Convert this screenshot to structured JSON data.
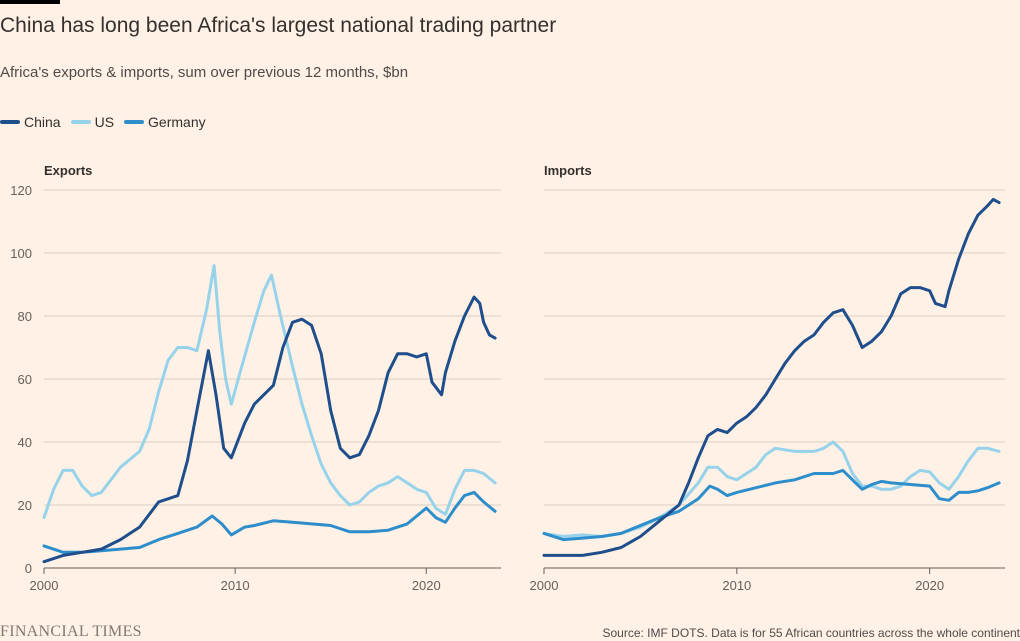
{
  "header": {
    "title": "China has long been Africa's largest national trading partner",
    "subtitle": "Africa's exports & imports, sum over previous 12 months, $bn"
  },
  "legend": [
    {
      "label": "China",
      "color": "#1f4e8c"
    },
    {
      "label": "US",
      "color": "#96d3eb"
    },
    {
      "label": "Germany",
      "color": "#2d8ecb"
    }
  ],
  "footer": {
    "brand": "FINANCIAL TIMES",
    "source": "Source: IMF DOTS. Data is for 55 African countries across the whole continent"
  },
  "chart_data": [
    {
      "type": "line",
      "title": "Exports",
      "xlim": [
        2000,
        2023.7
      ],
      "ylim": [
        0,
        120
      ],
      "xticks": [
        "2000",
        "2010",
        "2020"
      ],
      "yticks": [
        "0",
        "20",
        "40",
        "60",
        "80",
        "100",
        "120"
      ],
      "series": [
        {
          "name": "China",
          "color": "#1f4e8c",
          "points": [
            [
              2000,
              2
            ],
            [
              2001,
              4
            ],
            [
              2002,
              5
            ],
            [
              2003,
              6
            ],
            [
              2004,
              9
            ],
            [
              2005,
              13
            ],
            [
              2006,
              21
            ],
            [
              2007,
              23
            ],
            [
              2007.5,
              34
            ],
            [
              2008,
              50
            ],
            [
              2008.6,
              69
            ],
            [
              2009,
              55
            ],
            [
              2009.4,
              38
            ],
            [
              2009.8,
              35
            ],
            [
              2010.5,
              46
            ],
            [
              2011,
              52
            ],
            [
              2012,
              58
            ],
            [
              2012.5,
              70
            ],
            [
              2013,
              78
            ],
            [
              2013.5,
              79
            ],
            [
              2014,
              77
            ],
            [
              2014.5,
              68
            ],
            [
              2015,
              50
            ],
            [
              2015.5,
              38
            ],
            [
              2016,
              35
            ],
            [
              2016.5,
              36
            ],
            [
              2017,
              42
            ],
            [
              2017.5,
              50
            ],
            [
              2018,
              62
            ],
            [
              2018.5,
              68
            ],
            [
              2019,
              68
            ],
            [
              2019.5,
              67
            ],
            [
              2020,
              68
            ],
            [
              2020.3,
              59
            ],
            [
              2020.8,
              55
            ],
            [
              2021,
              62
            ],
            [
              2021.5,
              72
            ],
            [
              2022,
              80
            ],
            [
              2022.5,
              86
            ],
            [
              2022.8,
              84
            ],
            [
              2023,
              78
            ],
            [
              2023.3,
              74
            ],
            [
              2023.6,
              73
            ]
          ]
        },
        {
          "name": "US",
          "color": "#96d3eb",
          "points": [
            [
              2000,
              16
            ],
            [
              2000.5,
              25
            ],
            [
              2001,
              31
            ],
            [
              2001.5,
              31
            ],
            [
              2002,
              26
            ],
            [
              2002.5,
              23
            ],
            [
              2003,
              24
            ],
            [
              2004,
              32
            ],
            [
              2005,
              37
            ],
            [
              2005.5,
              44
            ],
            [
              2006,
              56
            ],
            [
              2006.5,
              66
            ],
            [
              2007,
              70
            ],
            [
              2007.5,
              70
            ],
            [
              2008,
              69
            ],
            [
              2008.5,
              82
            ],
            [
              2008.9,
              96
            ],
            [
              2009.2,
              75
            ],
            [
              2009.5,
              60
            ],
            [
              2009.8,
              52
            ],
            [
              2010.3,
              63
            ],
            [
              2011,
              78
            ],
            [
              2011.5,
              88
            ],
            [
              2011.9,
              93
            ],
            [
              2012.3,
              82
            ],
            [
              2013,
              64
            ],
            [
              2013.5,
              52
            ],
            [
              2014,
              42
            ],
            [
              2014.5,
              33
            ],
            [
              2015,
              27
            ],
            [
              2015.5,
              23
            ],
            [
              2016,
              20
            ],
            [
              2016.5,
              21
            ],
            [
              2017,
              24
            ],
            [
              2017.5,
              26
            ],
            [
              2018,
              27
            ],
            [
              2018.5,
              29
            ],
            [
              2019,
              27
            ],
            [
              2019.5,
              25
            ],
            [
              2020,
              24
            ],
            [
              2020.5,
              19
            ],
            [
              2021,
              17
            ],
            [
              2021.5,
              25
            ],
            [
              2022,
              31
            ],
            [
              2022.5,
              31
            ],
            [
              2023,
              30
            ],
            [
              2023.6,
              27
            ]
          ]
        },
        {
          "name": "Germany",
          "color": "#2d8ecb",
          "points": [
            [
              2000,
              7
            ],
            [
              2001,
              5
            ],
            [
              2002,
              5
            ],
            [
              2003,
              5.5
            ],
            [
              2004,
              6
            ],
            [
              2005,
              6.5
            ],
            [
              2006,
              9
            ],
            [
              2007,
              11
            ],
            [
              2008,
              13
            ],
            [
              2008.8,
              16.5
            ],
            [
              2009.3,
              14
            ],
            [
              2009.8,
              10.5
            ],
            [
              2010.5,
              13
            ],
            [
              2011,
              13.5
            ],
            [
              2012,
              15
            ],
            [
              2013,
              14.5
            ],
            [
              2014,
              14
            ],
            [
              2015,
              13.5
            ],
            [
              2016,
              11.5
            ],
            [
              2017,
              11.5
            ],
            [
              2018,
              12
            ],
            [
              2019,
              14
            ],
            [
              2020,
              19
            ],
            [
              2020.5,
              16
            ],
            [
              2021,
              14.5
            ],
            [
              2021.5,
              19
            ],
            [
              2022,
              23
            ],
            [
              2022.5,
              24
            ],
            [
              2023,
              21
            ],
            [
              2023.6,
              18
            ]
          ]
        }
      ]
    },
    {
      "type": "line",
      "title": "Imports",
      "xlim": [
        2000,
        2023.7
      ],
      "ylim": [
        0,
        120
      ],
      "xticks": [
        "2000",
        "2010",
        "2020"
      ],
      "yticks": [
        "0",
        "20",
        "40",
        "60",
        "80",
        "100",
        "120"
      ],
      "series": [
        {
          "name": "China",
          "color": "#1f4e8c",
          "points": [
            [
              2000,
              4
            ],
            [
              2001,
              4
            ],
            [
              2002,
              4
            ],
            [
              2003,
              5
            ],
            [
              2004,
              6.5
            ],
            [
              2005,
              10
            ],
            [
              2006,
              15
            ],
            [
              2007,
              20
            ],
            [
              2007.5,
              27
            ],
            [
              2008,
              35
            ],
            [
              2008.5,
              42
            ],
            [
              2009,
              44
            ],
            [
              2009.5,
              43
            ],
            [
              2010,
              46
            ],
            [
              2010.5,
              48
            ],
            [
              2011,
              51
            ],
            [
              2011.5,
              55
            ],
            [
              2012,
              60
            ],
            [
              2012.5,
              65
            ],
            [
              2013,
              69
            ],
            [
              2013.5,
              72
            ],
            [
              2014,
              74
            ],
            [
              2014.5,
              78
            ],
            [
              2015,
              81
            ],
            [
              2015.5,
              82
            ],
            [
              2016,
              77
            ],
            [
              2016.5,
              70
            ],
            [
              2017,
              72
            ],
            [
              2017.5,
              75
            ],
            [
              2018,
              80
            ],
            [
              2018.5,
              87
            ],
            [
              2019,
              89
            ],
            [
              2019.5,
              89
            ],
            [
              2020,
              88
            ],
            [
              2020.3,
              84
            ],
            [
              2020.8,
              83
            ],
            [
              2021,
              88
            ],
            [
              2021.5,
              98
            ],
            [
              2022,
              106
            ],
            [
              2022.5,
              112
            ],
            [
              2023,
              115
            ],
            [
              2023.3,
              117
            ],
            [
              2023.6,
              116
            ]
          ]
        },
        {
          "name": "US",
          "color": "#96d3eb",
          "points": [
            [
              2000,
              11
            ],
            [
              2001,
              10
            ],
            [
              2002,
              10.5
            ],
            [
              2003,
              10
            ],
            [
              2004,
              11
            ],
            [
              2005,
              13
            ],
            [
              2006,
              16
            ],
            [
              2007,
              20
            ],
            [
              2008,
              27
            ],
            [
              2008.5,
              32
            ],
            [
              2009,
              32
            ],
            [
              2009.5,
              29
            ],
            [
              2010,
              28
            ],
            [
              2011,
              32
            ],
            [
              2011.5,
              36
            ],
            [
              2012,
              38
            ],
            [
              2013,
              37
            ],
            [
              2014,
              37
            ],
            [
              2014.5,
              38
            ],
            [
              2015,
              40
            ],
            [
              2015.5,
              37
            ],
            [
              2016,
              30
            ],
            [
              2016.5,
              26
            ],
            [
              2017,
              26
            ],
            [
              2017.5,
              25
            ],
            [
              2018,
              25
            ],
            [
              2018.5,
              26
            ],
            [
              2019,
              29
            ],
            [
              2019.5,
              31
            ],
            [
              2020,
              30.5
            ],
            [
              2020.5,
              27
            ],
            [
              2021,
              25
            ],
            [
              2021.5,
              29
            ],
            [
              2022,
              34
            ],
            [
              2022.5,
              38
            ],
            [
              2023,
              38
            ],
            [
              2023.6,
              37
            ]
          ]
        },
        {
          "name": "Germany",
          "color": "#2d8ecb",
          "points": [
            [
              2000,
              11
            ],
            [
              2001,
              9
            ],
            [
              2002,
              9.5
            ],
            [
              2003,
              10
            ],
            [
              2004,
              11
            ],
            [
              2005,
              13.5
            ],
            [
              2006,
              16
            ],
            [
              2007,
              18
            ],
            [
              2008,
              22
            ],
            [
              2008.6,
              26
            ],
            [
              2009,
              25
            ],
            [
              2009.5,
              23
            ],
            [
              2010,
              24
            ],
            [
              2011,
              25.5
            ],
            [
              2012,
              27
            ],
            [
              2013,
              28
            ],
            [
              2014,
              30
            ],
            [
              2015,
              30
            ],
            [
              2015.5,
              31
            ],
            [
              2016,
              28
            ],
            [
              2016.5,
              25
            ],
            [
              2017,
              26.5
            ],
            [
              2017.5,
              27.5
            ],
            [
              2018,
              27
            ],
            [
              2019,
              26.5
            ],
            [
              2020,
              26
            ],
            [
              2020.5,
              22
            ],
            [
              2021,
              21.5
            ],
            [
              2021.5,
              24
            ],
            [
              2022,
              24
            ],
            [
              2022.5,
              24.5
            ],
            [
              2023,
              25.5
            ],
            [
              2023.6,
              27
            ]
          ]
        }
      ]
    }
  ]
}
